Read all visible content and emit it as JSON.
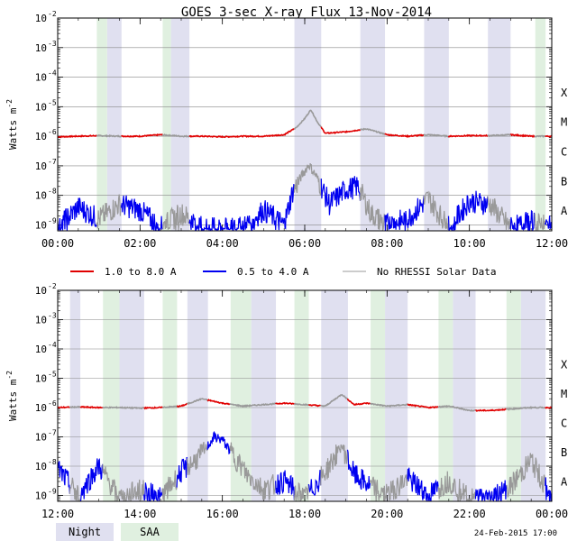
{
  "title": "GOES 3-sec X-ray Flux   13-Nov-2014",
  "ylabel": "Watts m",
  "ylabel_sup": "-2",
  "footer_date": "24-Feb-2015 17:00",
  "colors": {
    "long": "#e00000",
    "short": "#0000f0",
    "norhessi": "#999999",
    "night": "#e0e0f0",
    "saa": "#e0f0e0",
    "grid": "#888888"
  },
  "legend": [
    {
      "label": "1.0 to 8.0 A",
      "color": "#e00000"
    },
    {
      "label": "0.5 to 4.0 A",
      "color": "#0000f0"
    },
    {
      "label": "No RHESSI Solar Data",
      "color": "#999999"
    }
  ],
  "bands_legend": [
    {
      "label": "Night",
      "color": "#e0e0f0"
    },
    {
      "label": "SAA",
      "color": "#e0f0e0"
    }
  ],
  "y_exponents": [
    -2,
    -3,
    -4,
    -5,
    -6,
    -7,
    -8,
    -9
  ],
  "flare_classes": [
    {
      "label": "X",
      "exp": -4
    },
    {
      "label": "M",
      "exp": -5
    },
    {
      "label": "C",
      "exp": -6
    },
    {
      "label": "B",
      "exp": -7
    },
    {
      "label": "A",
      "exp": -8
    }
  ],
  "chart_data": [
    {
      "type": "line",
      "title": "GOES 3-sec X-ray Flux   13-Nov-2014",
      "xlabel": "",
      "ylabel": "Watts m-2",
      "xlim": [
        0,
        12
      ],
      "ylim_log10": [
        -9.2,
        -2
      ],
      "x_ticks": [
        "00:00",
        "02:00",
        "04:00",
        "06:00",
        "08:00",
        "10:00",
        "12:00"
      ],
      "night": [
        [
          1.2,
          1.55
        ],
        [
          2.75,
          3.2
        ],
        [
          5.75,
          6.4
        ],
        [
          7.35,
          7.95
        ],
        [
          8.9,
          9.5
        ],
        [
          10.45,
          11.0
        ]
      ],
      "saa": [
        [
          0.95,
          1.2
        ],
        [
          2.55,
          2.75
        ],
        [
          11.6,
          11.85
        ]
      ],
      "series": [
        {
          "name": "1.0 to 8.0 A",
          "x": [
            0,
            0.5,
            1,
            1.5,
            2,
            2.5,
            3,
            3.5,
            4,
            4.5,
            5,
            5.5,
            5.8,
            6.0,
            6.15,
            6.3,
            6.5,
            7,
            7.5,
            8,
            8.5,
            9,
            9.5,
            10,
            10.5,
            11,
            11.5,
            12
          ],
          "log10": [
            -6.02,
            -6.0,
            -5.98,
            -6.0,
            -6.0,
            -5.95,
            -6.0,
            -6.0,
            -6.02,
            -6.0,
            -6.0,
            -5.95,
            -5.7,
            -5.4,
            -5.1,
            -5.5,
            -5.9,
            -5.85,
            -5.75,
            -5.95,
            -6.0,
            -5.95,
            -6.0,
            -5.98,
            -5.98,
            -5.95,
            -6.0,
            -6.0
          ]
        },
        {
          "name": "0.5 to 4.0 A",
          "x": [
            0,
            0.5,
            1,
            1.5,
            2,
            2.5,
            3,
            3.5,
            4,
            4.5,
            5,
            5.5,
            5.7,
            5.9,
            6.1,
            6.3,
            6.6,
            7,
            7.3,
            7.6,
            8,
            8.5,
            9,
            9.5,
            10,
            10.5,
            11,
            11.5,
            12
          ],
          "log10": [
            -9.1,
            -8.4,
            -8.8,
            -8.3,
            -8.5,
            -9.1,
            -8.6,
            -9.1,
            -9.15,
            -9.1,
            -8.5,
            -9.0,
            -7.9,
            -7.4,
            -6.95,
            -7.4,
            -8.3,
            -7.8,
            -7.7,
            -8.6,
            -9.0,
            -8.8,
            -8.1,
            -9.1,
            -8.2,
            -8.3,
            -9.1,
            -8.9,
            -9.1
          ]
        }
      ]
    },
    {
      "type": "line",
      "title": "",
      "xlabel": "",
      "ylabel": "Watts m-2",
      "xlim": [
        12,
        24
      ],
      "ylim_log10": [
        -9.2,
        -2
      ],
      "x_ticks": [
        "12:00",
        "14:00",
        "16:00",
        "18:00",
        "20:00",
        "22:00",
        "00:00"
      ],
      "night": [
        [
          12.3,
          12.55
        ],
        [
          13.5,
          14.1
        ],
        [
          15.15,
          15.65
        ],
        [
          16.7,
          17.3
        ],
        [
          18.4,
          19.05
        ],
        [
          19.95,
          20.5
        ],
        [
          21.6,
          22.15
        ],
        [
          23.25,
          23.85
        ]
      ],
      "saa": [
        [
          13.1,
          13.5
        ],
        [
          14.55,
          14.9
        ],
        [
          16.2,
          16.7
        ],
        [
          17.75,
          18.1
        ],
        [
          19.6,
          19.95
        ],
        [
          21.25,
          21.6
        ],
        [
          22.9,
          23.25
        ]
      ],
      "series": [
        {
          "name": "1.0 to 8.0 A",
          "x": [
            12,
            12.5,
            13,
            13.5,
            14,
            14.5,
            15,
            15.5,
            16,
            16.5,
            17,
            17.5,
            18,
            18.5,
            18.9,
            19.2,
            19.5,
            20,
            20.5,
            21,
            21.5,
            22,
            22.5,
            23,
            23.5,
            24
          ],
          "log10": [
            -6.0,
            -5.98,
            -6.0,
            -6.0,
            -6.02,
            -6.0,
            -5.95,
            -5.7,
            -5.85,
            -5.95,
            -5.9,
            -5.85,
            -5.9,
            -5.95,
            -5.55,
            -5.9,
            -5.85,
            -5.95,
            -5.9,
            -6.0,
            -5.95,
            -6.1,
            -6.1,
            -6.05,
            -6.0,
            -6.0
          ]
        },
        {
          "name": "0.5 to 4.0 A",
          "x": [
            12,
            12.5,
            13,
            13.5,
            14,
            14.5,
            15,
            15.5,
            15.8,
            16.0,
            16.3,
            16.6,
            17,
            17.5,
            18,
            18.5,
            18.9,
            19.2,
            19.5,
            20,
            20.5,
            21,
            21.5,
            22,
            22.5,
            23,
            23.5,
            24
          ],
          "log10": [
            -8.1,
            -9.0,
            -8.0,
            -9.1,
            -8.8,
            -9.1,
            -8.2,
            -7.6,
            -7.0,
            -7.1,
            -7.7,
            -8.3,
            -8.8,
            -8.5,
            -9.1,
            -8.2,
            -7.3,
            -8.3,
            -8.6,
            -9.0,
            -8.4,
            -9.0,
            -8.5,
            -9.1,
            -9.1,
            -8.7,
            -7.8,
            -9.1
          ]
        }
      ]
    }
  ]
}
